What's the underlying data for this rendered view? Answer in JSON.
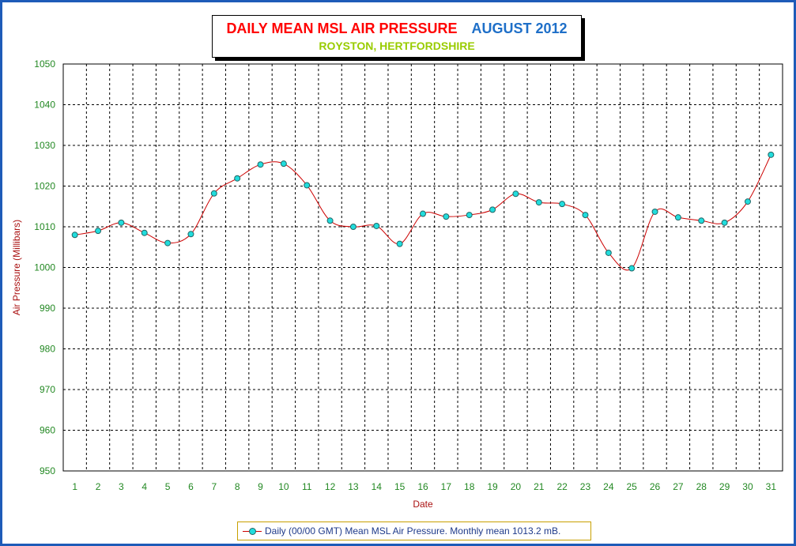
{
  "chart_data": {
    "type": "line",
    "title": "DAILY MEAN MSL AIR PRESSURE",
    "title_date": "AUGUST 2012",
    "subtitle": "ROYSTON, HERTFORDSHIRE",
    "xlabel": "Date",
    "ylabel": "Air Pressure (Millibars)",
    "ylim": [
      950,
      1050
    ],
    "yticks": [
      950,
      960,
      970,
      980,
      990,
      1000,
      1010,
      1020,
      1030,
      1040,
      1050
    ],
    "grid": true,
    "legend_position": "bottom-center",
    "x": [
      1,
      2,
      3,
      4,
      5,
      6,
      7,
      8,
      9,
      10,
      11,
      12,
      13,
      14,
      15,
      16,
      17,
      18,
      19,
      20,
      21,
      22,
      23,
      24,
      25,
      26,
      27,
      28,
      29,
      30,
      31
    ],
    "series": [
      {
        "name": "Daily (00/00 GMT) Mean MSL Air Pressure. Monthly mean 1013.2 mB.",
        "color": "#cc0000",
        "marker_color": "#22dddd",
        "values": [
          1008.0,
          1009.0,
          1011.0,
          1008.5,
          1006.0,
          1008.2,
          1018.2,
          1021.9,
          1025.3,
          1025.5,
          1020.2,
          1011.5,
          1010.0,
          1010.2,
          1005.8,
          1013.2,
          1012.5,
          1012.9,
          1014.2,
          1018.1,
          1016.0,
          1015.6,
          1012.9,
          1003.6,
          999.8,
          1013.7,
          1012.3,
          1011.5,
          1011.0,
          1016.2,
          1027.7
        ]
      }
    ]
  },
  "colors": {
    "frame": "#1e5bb8",
    "tick_labels": "#228822",
    "axis_title": "#aa1111",
    "grid": "#000000"
  }
}
